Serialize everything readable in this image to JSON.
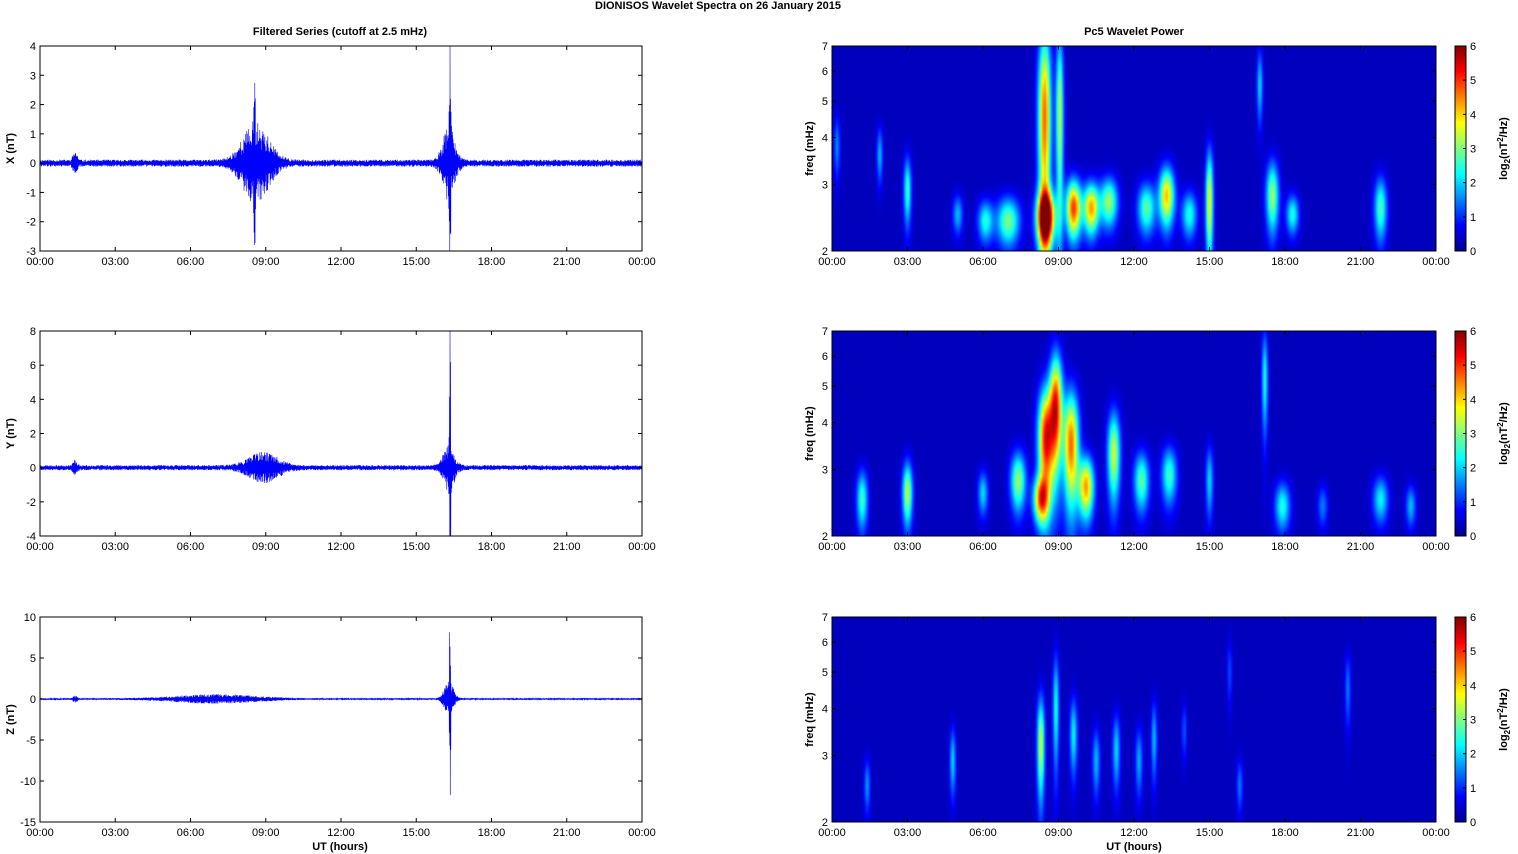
{
  "figure": {
    "title": "DIONISOS Wavelet Spectra on 26 January   2015",
    "left_column_title": "Filtered Series (cutoff at 2.5 mHz)",
    "right_column_title": "Pc5 Wavelet Power",
    "xlabel": "UT (hours)",
    "colors": {
      "trace": "#0000ff",
      "background": "#ffffff",
      "spectrogram_floor": "#00008f"
    }
  },
  "chart_data": [
    {
      "id": "x-series",
      "type": "line",
      "ylabel": "X (nT)",
      "ylim": [
        -3,
        4
      ],
      "yticks": [
        "4",
        "3",
        "2",
        "1",
        "0",
        "-1",
        "-2",
        "-3"
      ],
      "xlim": [
        0,
        24
      ],
      "xticks": [
        "00:00",
        "03:00",
        "06:00",
        "09:00",
        "12:00",
        "15:00",
        "18:00",
        "21:00",
        "00:00"
      ],
      "xtick_hours": [
        0,
        3,
        6,
        9,
        12,
        15,
        18,
        21,
        24
      ],
      "series": [
        {
          "base_amplitude": 0.12,
          "seed": 11,
          "bursts": [
            {
              "t": 8.6,
              "width": 1.0,
              "amp": 1.3
            },
            {
              "t": 8.55,
              "width": 0.05,
              "amp": 2.5
            },
            {
              "t": 16.3,
              "width": 0.45,
              "amp": 1.2
            },
            {
              "t": 16.35,
              "width": 0.05,
              "amp": 3.1
            },
            {
              "t": 1.4,
              "width": 0.15,
              "amp": 0.35
            }
          ]
        }
      ]
    },
    {
      "id": "y-series",
      "type": "line",
      "ylabel": "Y (nT)",
      "ylim": [
        -4,
        8
      ],
      "yticks": [
        "8",
        "6",
        "4",
        "2",
        "0",
        "-2",
        "-4"
      ],
      "xlim": [
        0,
        24
      ],
      "xticks": [
        "00:00",
        "03:00",
        "06:00",
        "09:00",
        "12:00",
        "15:00",
        "18:00",
        "21:00",
        "00:00"
      ],
      "xtick_hours": [
        0,
        3,
        6,
        9,
        12,
        15,
        18,
        21,
        24
      ],
      "series": [
        {
          "base_amplitude": 0.15,
          "seed": 23,
          "bursts": [
            {
              "t": 8.9,
              "width": 1.1,
              "amp": 0.8
            },
            {
              "t": 16.3,
              "width": 0.4,
              "amp": 1.3
            },
            {
              "t": 16.35,
              "width": 0.04,
              "amp": 7.5
            },
            {
              "t": 1.4,
              "width": 0.15,
              "amp": 0.35
            }
          ]
        }
      ]
    },
    {
      "id": "z-series",
      "type": "line",
      "ylabel": "Z (nT)",
      "ylim": [
        -15,
        10
      ],
      "yticks": [
        "10",
        "5",
        "0",
        "-5",
        "-10",
        "-15"
      ],
      "xlim": [
        0,
        24
      ],
      "xticks": [
        "00:00",
        "03:00",
        "06:00",
        "09:00",
        "12:00",
        "15:00",
        "18:00",
        "21:00",
        "00:00"
      ],
      "xtick_hours": [
        0,
        3,
        6,
        9,
        12,
        15,
        18,
        21,
        24
      ],
      "series": [
        {
          "base_amplitude": 0.1,
          "seed": 37,
          "bursts": [
            {
              "t": 7.0,
              "width": 3.0,
              "amp": 0.5
            },
            {
              "t": 16.3,
              "width": 0.35,
              "amp": 2.0
            },
            {
              "t": 16.35,
              "width": 0.04,
              "amp": 13.5
            },
            {
              "t": 1.4,
              "width": 0.15,
              "amp": 0.4
            }
          ]
        }
      ]
    },
    {
      "id": "x-wavelet",
      "type": "heatmap",
      "ylabel": "freq (mHz)",
      "ylim": [
        2,
        7
      ],
      "yscale": "log",
      "yticks": [
        "7",
        "6",
        "5",
        "4",
        "3",
        "2"
      ],
      "ytick_values": [
        7,
        6,
        5,
        4,
        3,
        2
      ],
      "xlim": [
        0,
        24
      ],
      "xticks": [
        "00:00",
        "03:00",
        "06:00",
        "09:00",
        "12:00",
        "15:00",
        "18:00",
        "21:00",
        "00:00"
      ],
      "xtick_hours": [
        0,
        3,
        6,
        9,
        12,
        15,
        18,
        21,
        24
      ],
      "colorbar": {
        "label": "log2(nT2/Hz)",
        "range": [
          0,
          6
        ],
        "ticks": [
          "6",
          "5",
          "4",
          "3",
          "2",
          "1",
          "0"
        ]
      },
      "blobs": [
        {
          "t": 8.5,
          "f": 2.45,
          "dt": 0.35,
          "df": 0.4,
          "v": 6.2
        },
        {
          "t": 8.45,
          "f": 4.5,
          "dt": 0.25,
          "df": 2.8,
          "v": 4.6
        },
        {
          "t": 9.05,
          "f": 4.6,
          "dt": 0.15,
          "df": 2.6,
          "v": 3.2
        },
        {
          "t": 9.6,
          "f": 2.6,
          "dt": 0.3,
          "df": 0.45,
          "v": 4.9
        },
        {
          "t": 10.3,
          "f": 2.6,
          "dt": 0.3,
          "df": 0.4,
          "v": 4.2
        },
        {
          "t": 7.0,
          "f": 2.4,
          "dt": 0.45,
          "df": 0.35,
          "v": 2.8
        },
        {
          "t": 6.1,
          "f": 2.4,
          "dt": 0.3,
          "df": 0.3,
          "v": 2.2
        },
        {
          "t": 11.0,
          "f": 2.7,
          "dt": 0.35,
          "df": 0.4,
          "v": 3.0
        },
        {
          "t": 12.5,
          "f": 2.6,
          "dt": 0.35,
          "df": 0.4,
          "v": 2.6
        },
        {
          "t": 13.3,
          "f": 2.8,
          "dt": 0.3,
          "df": 0.5,
          "v": 4.0
        },
        {
          "t": 14.2,
          "f": 2.5,
          "dt": 0.3,
          "df": 0.35,
          "v": 2.2
        },
        {
          "t": 15.0,
          "f": 2.7,
          "dt": 0.15,
          "df": 0.9,
          "v": 3.6
        },
        {
          "t": 17.5,
          "f": 2.8,
          "dt": 0.25,
          "df": 0.6,
          "v": 3.0
        },
        {
          "t": 18.3,
          "f": 2.5,
          "dt": 0.25,
          "df": 0.3,
          "v": 2.2
        },
        {
          "t": 21.8,
          "f": 2.6,
          "dt": 0.25,
          "df": 0.5,
          "v": 2.5
        },
        {
          "t": 3.0,
          "f": 2.9,
          "dt": 0.15,
          "df": 0.6,
          "v": 2.4
        },
        {
          "t": 1.9,
          "f": 3.6,
          "dt": 0.12,
          "df": 0.6,
          "v": 1.6
        },
        {
          "t": 0.2,
          "f": 3.8,
          "dt": 0.12,
          "df": 0.7,
          "v": 1.3
        },
        {
          "t": 17.0,
          "f": 5.5,
          "dt": 0.12,
          "df": 1.2,
          "v": 1.8
        },
        {
          "t": 5.0,
          "f": 2.5,
          "dt": 0.2,
          "df": 0.3,
          "v": 1.6
        }
      ]
    },
    {
      "id": "y-wavelet",
      "type": "heatmap",
      "ylabel": "freq (mHz)",
      "ylim": [
        2,
        7
      ],
      "yscale": "log",
      "yticks": [
        "7",
        "6",
        "5",
        "4",
        "3",
        "2"
      ],
      "ytick_values": [
        7,
        6,
        5,
        4,
        3,
        2
      ],
      "xlim": [
        0,
        24
      ],
      "xticks": [
        "00:00",
        "03:00",
        "06:00",
        "09:00",
        "12:00",
        "15:00",
        "18:00",
        "21:00",
        "00:00"
      ],
      "xtick_hours": [
        0,
        3,
        6,
        9,
        12,
        15,
        18,
        21,
        24
      ],
      "colorbar": {
        "label": "log2(nT2/Hz)",
        "range": [
          0,
          6
        ],
        "ticks": [
          "6",
          "5",
          "4",
          "3",
          "2",
          "1",
          "0"
        ]
      },
      "blobs": [
        {
          "t": 8.5,
          "f": 3.6,
          "dt": 0.3,
          "df": 1.2,
          "v": 5.2
        },
        {
          "t": 8.9,
          "f": 4.4,
          "dt": 0.25,
          "df": 1.5,
          "v": 5.0
        },
        {
          "t": 9.5,
          "f": 3.5,
          "dt": 0.3,
          "df": 1.2,
          "v": 4.6
        },
        {
          "t": 10.1,
          "f": 2.7,
          "dt": 0.3,
          "df": 0.5,
          "v": 4.2
        },
        {
          "t": 8.3,
          "f": 2.5,
          "dt": 0.3,
          "df": 0.35,
          "v": 4.0
        },
        {
          "t": 7.4,
          "f": 2.8,
          "dt": 0.3,
          "df": 0.5,
          "v": 3.0
        },
        {
          "t": 11.2,
          "f": 3.3,
          "dt": 0.25,
          "df": 0.9,
          "v": 3.3
        },
        {
          "t": 12.3,
          "f": 2.8,
          "dt": 0.3,
          "df": 0.5,
          "v": 2.6
        },
        {
          "t": 13.4,
          "f": 2.9,
          "dt": 0.3,
          "df": 0.5,
          "v": 2.4
        },
        {
          "t": 3.0,
          "f": 2.6,
          "dt": 0.2,
          "df": 0.5,
          "v": 3.2
        },
        {
          "t": 1.2,
          "f": 2.5,
          "dt": 0.22,
          "df": 0.45,
          "v": 2.4
        },
        {
          "t": 17.9,
          "f": 2.4,
          "dt": 0.3,
          "df": 0.35,
          "v": 2.2
        },
        {
          "t": 21.8,
          "f": 2.5,
          "dt": 0.3,
          "df": 0.35,
          "v": 2.0
        },
        {
          "t": 23.0,
          "f": 2.4,
          "dt": 0.2,
          "df": 0.3,
          "v": 1.6
        },
        {
          "t": 6.0,
          "f": 2.6,
          "dt": 0.2,
          "df": 0.35,
          "v": 1.8
        },
        {
          "t": 17.2,
          "f": 5.2,
          "dt": 0.12,
          "df": 1.6,
          "v": 2.2
        },
        {
          "t": 15.0,
          "f": 2.8,
          "dt": 0.15,
          "df": 0.6,
          "v": 1.8
        },
        {
          "t": 19.5,
          "f": 2.4,
          "dt": 0.2,
          "df": 0.3,
          "v": 1.2
        }
      ]
    },
    {
      "id": "z-wavelet",
      "type": "heatmap",
      "ylabel": "freq (mHz)",
      "ylim": [
        2,
        7
      ],
      "yscale": "log",
      "yticks": [
        "7",
        "6",
        "5",
        "4",
        "3",
        "2"
      ],
      "ytick_values": [
        7,
        6,
        5,
        4,
        3,
        2
      ],
      "xlim": [
        0,
        24
      ],
      "xticks": [
        "00:00",
        "03:00",
        "06:00",
        "09:00",
        "12:00",
        "15:00",
        "18:00",
        "21:00",
        "00:00"
      ],
      "xtick_hours": [
        0,
        3,
        6,
        9,
        12,
        15,
        18,
        21,
        24
      ],
      "colorbar": {
        "label": "log2(nT2/Hz)",
        "range": [
          0,
          6
        ],
        "ticks": [
          "6",
          "5",
          "4",
          "3",
          "2",
          "1",
          "0"
        ]
      },
      "blobs": [
        {
          "t": 8.3,
          "f": 3.2,
          "dt": 0.15,
          "df": 1.0,
          "v": 3.3
        },
        {
          "t": 8.9,
          "f": 4.0,
          "dt": 0.12,
          "df": 1.4,
          "v": 2.2
        },
        {
          "t": 9.6,
          "f": 3.4,
          "dt": 0.15,
          "df": 0.8,
          "v": 2.0
        },
        {
          "t": 10.5,
          "f": 2.9,
          "dt": 0.15,
          "df": 0.6,
          "v": 1.6
        },
        {
          "t": 11.3,
          "f": 3.1,
          "dt": 0.15,
          "df": 0.7,
          "v": 1.8
        },
        {
          "t": 12.2,
          "f": 2.9,
          "dt": 0.15,
          "df": 0.6,
          "v": 1.5
        },
        {
          "t": 12.8,
          "f": 3.3,
          "dt": 0.12,
          "df": 0.8,
          "v": 1.6
        },
        {
          "t": 4.8,
          "f": 2.9,
          "dt": 0.12,
          "df": 0.6,
          "v": 1.8
        },
        {
          "t": 1.4,
          "f": 2.5,
          "dt": 0.12,
          "df": 0.4,
          "v": 1.4
        },
        {
          "t": 16.2,
          "f": 2.5,
          "dt": 0.12,
          "df": 0.4,
          "v": 1.2
        },
        {
          "t": 20.5,
          "f": 4.5,
          "dt": 0.12,
          "df": 1.0,
          "v": 1.2
        },
        {
          "t": 14.0,
          "f": 3.5,
          "dt": 0.1,
          "df": 0.6,
          "v": 1.0
        },
        {
          "t": 15.8,
          "f": 5.0,
          "dt": 0.1,
          "df": 1.0,
          "v": 0.9
        }
      ]
    }
  ]
}
